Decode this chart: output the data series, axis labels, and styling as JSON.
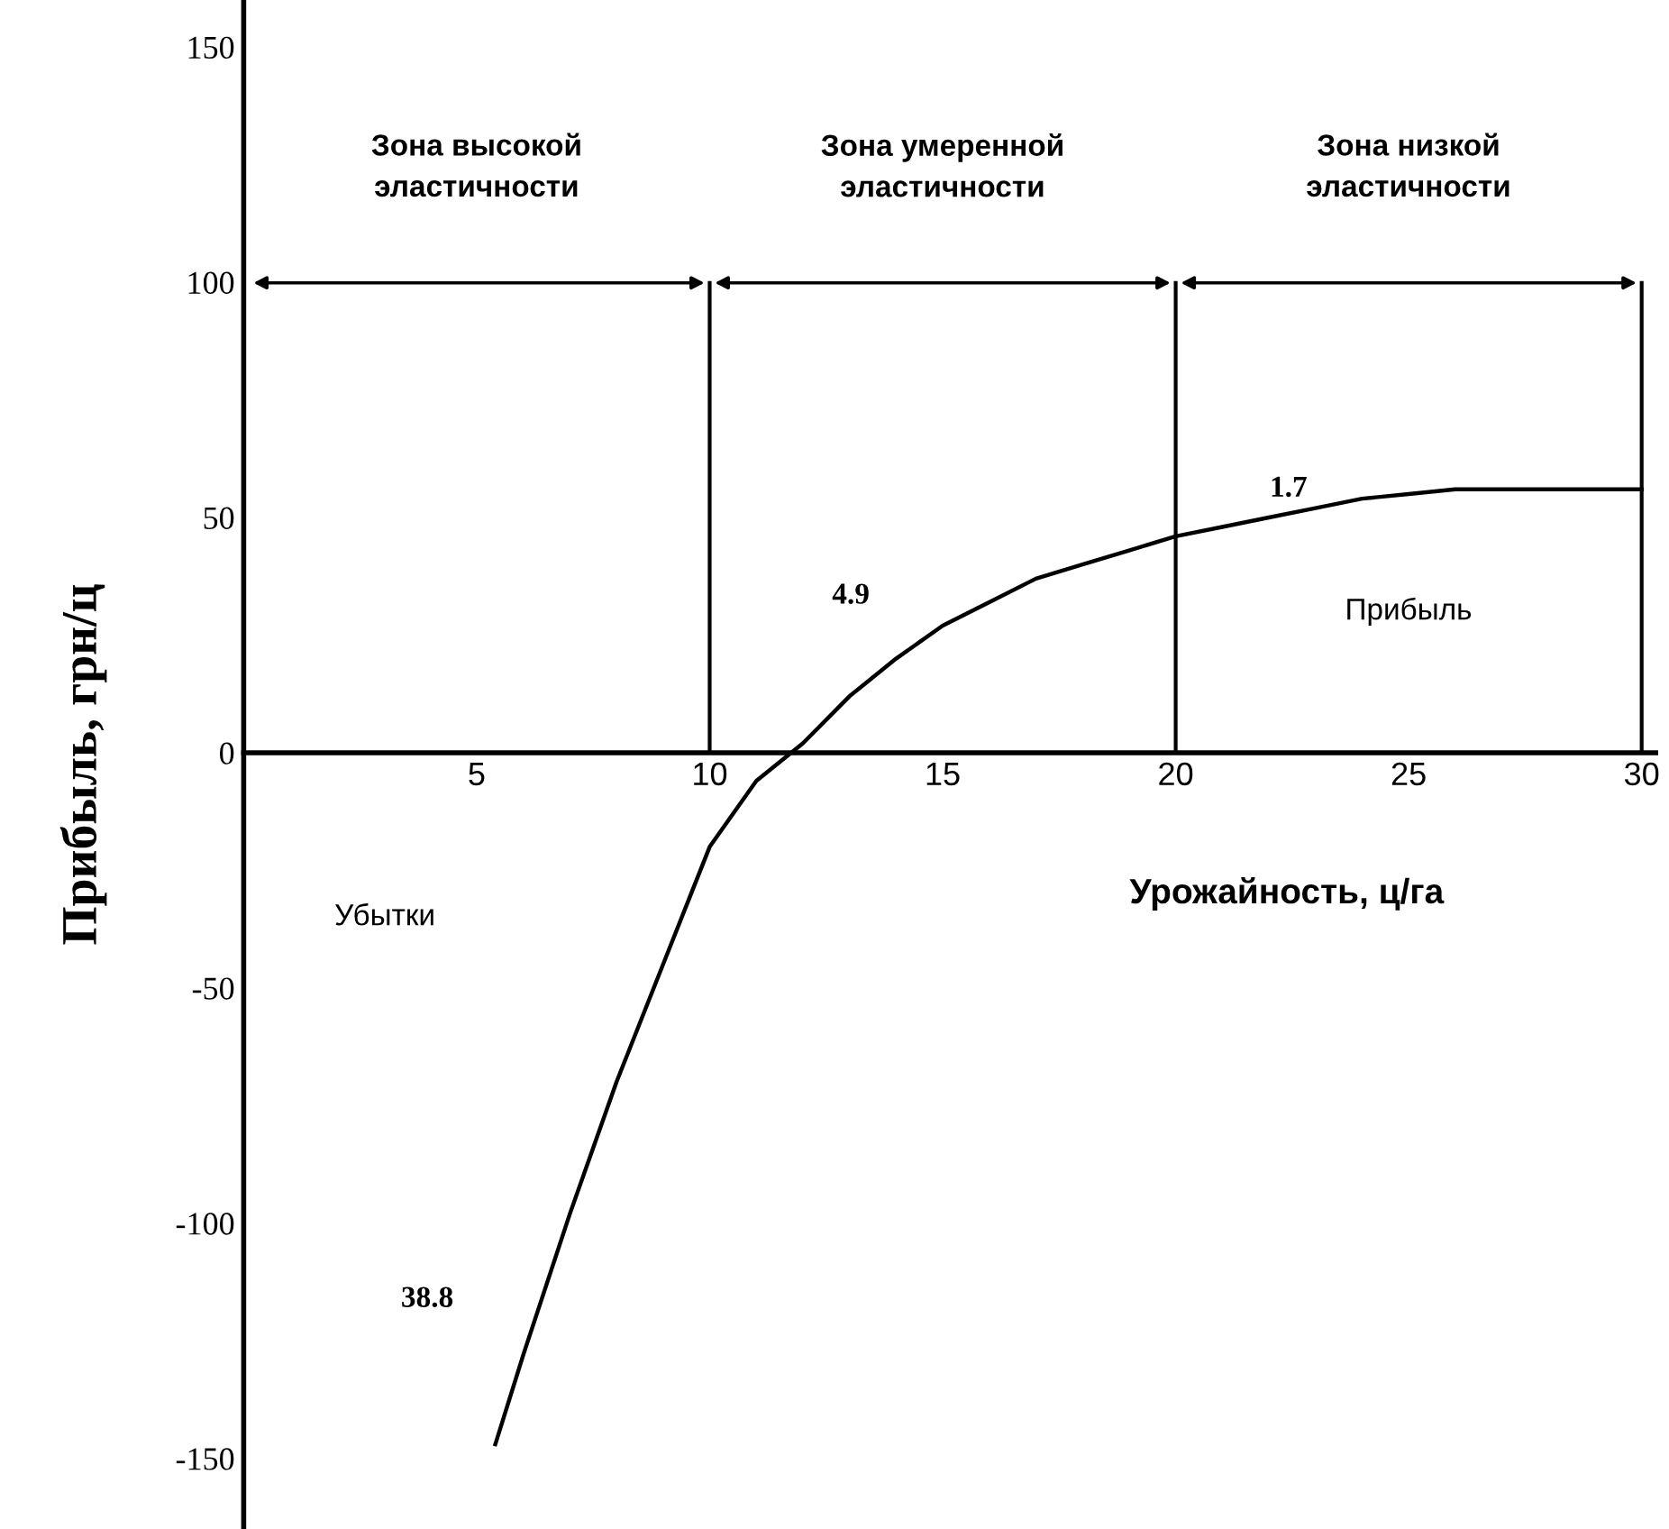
{
  "chart_data": {
    "type": "line",
    "xlabel": "Урожайность, ц/га",
    "ylabel": "Прибыль, грн/ц",
    "x": [
      5.4,
      6,
      7,
      8,
      9,
      10,
      11,
      12,
      13,
      14,
      15,
      16,
      17,
      18,
      19,
      20,
      21,
      22,
      23,
      24,
      25,
      26,
      30
    ],
    "series": [
      {
        "color": "#000000",
        "values": [
          -147,
          -128,
          -98,
          -70,
          -45,
          -20,
          -6,
          2,
          12,
          20,
          27,
          32,
          37,
          40,
          43,
          46,
          48,
          50,
          52,
          54,
          55,
          56,
          56
        ]
      }
    ],
    "xlim": [
      0,
      30.3
    ],
    "ylim": [
      -165,
      160
    ],
    "xticks": [
      5,
      10,
      15,
      20,
      25,
      30
    ],
    "yticks": [
      -150,
      -100,
      -50,
      0,
      50,
      100,
      150
    ],
    "grid": false,
    "legend": false,
    "marker": "none",
    "line_style": "solid",
    "ref_lines": [
      {
        "axis": "x",
        "value": 10,
        "label": null
      },
      {
        "axis": "x",
        "value": 20,
        "label": null
      },
      {
        "axis": "x",
        "value": 30,
        "label": null
      }
    ],
    "annotations": [
      "Зона высокой\nэластичности",
      "Зона умеренной\nэластичности",
      "Зона низкой\nэластичности",
      "Прибыль",
      "Убытки",
      "38.8",
      "4.9",
      "1.7"
    ]
  }
}
